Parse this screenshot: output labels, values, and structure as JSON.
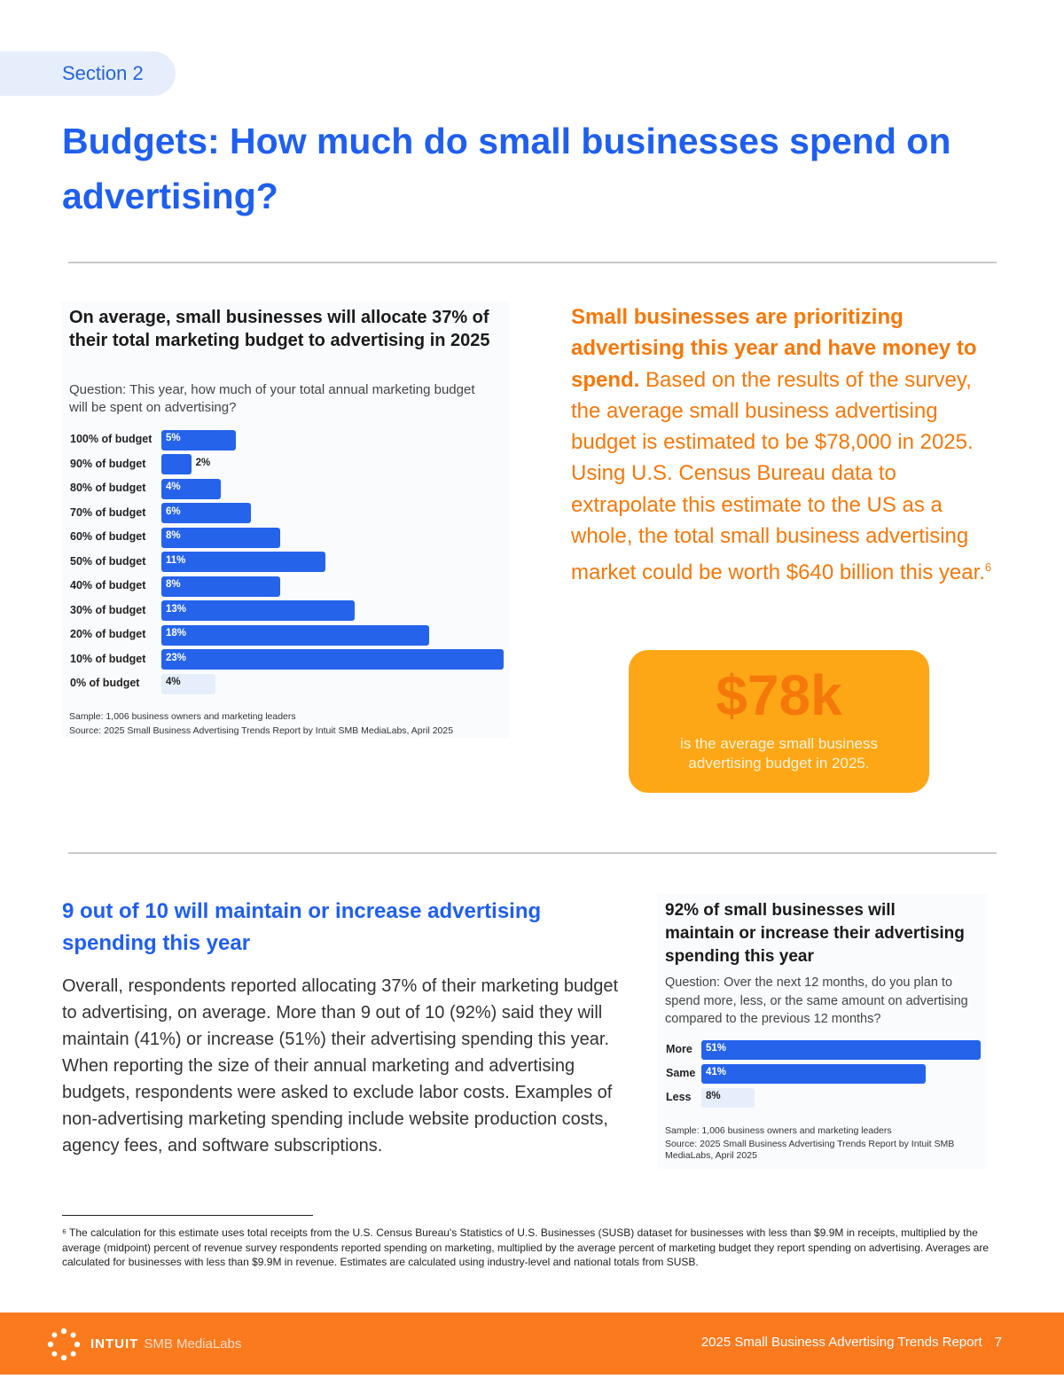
{
  "section_label": "Section 2",
  "title": "Budgets: How much do small businesses spend on advertising?",
  "chart1": {
    "title": "On average, small businesses will allocate 37% of their total marketing budget to advertising in 2025",
    "question": "Question: This year, how much of your total annual marketing budget will be spent on advertising?",
    "sample": "Sample: 1,006 business owners and marketing leaders",
    "source": "Source: 2025 Small Business Advertising Trends Report by Intuit SMB MediaLabs, April 2025"
  },
  "callout": {
    "lead": "Small businesses are prioritizing advertising this year and have money to spend.",
    "text": "Based on the results of the survey, the average small business advertising budget is estimated to be $78,000 in 2025. Using U.S. Census Bureau data to extrapolate this estimate to the US as a whole, the total small business advertising market could be worth $640 billion this year.",
    "footnote_ref": "6"
  },
  "stat": {
    "value": "$78k",
    "text": "is the average small business advertising budget in 2025."
  },
  "section2": {
    "heading": "9 out of 10 will maintain or increase advertising spending this year",
    "body": "Overall, respondents reported allocating 37% of their marketing budget to advertising, on average. More than 9 out of 10 (92%) said they will maintain (41%) or increase (51%) their advertising spending this year. When reporting the size of their annual marketing and advertising budgets, respondents were asked to exclude labor costs. Examples of non-advertising marketing spending include website production costs, agency fees, and software subscriptions."
  },
  "chart2": {
    "title": "92% of small businesses will maintain or increase their advertising spending this year",
    "question": "Question: Over the next 12 months, do you plan to spend more, less, or the same amount on advertising compared to the previous 12 months?",
    "sample": "Sample: 1,006 business owners and marketing leaders",
    "source": "Source: 2025 Small Business Advertising Trends Report by Intuit SMB MediaLabs, April 2025"
  },
  "footnote": "⁶ The calculation for this estimate uses total receipts from the U.S. Census Bureau's Statistics of U.S. Businesses (SUSB) dataset for businesses with less than $9.9M in receipts, multiplied by the average (midpoint) percent of revenue survey respondents reported spending on marketing, multiplied by the average percent of marketing budget they report spending on advertising. Averages are calculated for businesses with less than $9.9M in revenue. Estimates are calculated using industry-level and national totals from SUSB.",
  "footer": {
    "brand": "INTUIT",
    "brand_sub": "SMB MediaLabs",
    "report": "2025 Small Business Advertising Trends Report",
    "page": "7"
  },
  "colors": {
    "accent_blue": "#1f5fef",
    "bar_blue": "#2563eb",
    "bar_light": "#e6eefb",
    "orange": "#f5780a",
    "stat_bg": "#fda716",
    "footer_bg": "#fb7a1e"
  },
  "icons": [
    "intuit-logo-icon"
  ],
  "chart_data": [
    {
      "type": "bar",
      "orientation": "horizontal",
      "categories": [
        "100% of budget",
        "90% of budget",
        "80% of budget",
        "70% of budget",
        "60% of budget",
        "50% of budget",
        "40% of budget",
        "30% of budget",
        "20% of budget",
        "10% of budget",
        "0% of budget"
      ],
      "values": [
        5,
        2,
        4,
        6,
        8,
        11,
        8,
        13,
        18,
        23,
        4
      ],
      "labels": [
        "5%",
        "2%",
        "4%",
        "6%",
        "8%",
        "11%",
        "8%",
        "13%",
        "18%",
        "23%",
        "4%"
      ],
      "unit": "%",
      "xlim": [
        0,
        23
      ]
    },
    {
      "type": "bar",
      "orientation": "horizontal",
      "categories": [
        "More",
        "Same",
        "Less"
      ],
      "values": [
        51,
        41,
        8
      ],
      "labels": [
        "51%",
        "41%",
        "8%"
      ],
      "unit": "%",
      "xlim": [
        0,
        51
      ]
    }
  ]
}
